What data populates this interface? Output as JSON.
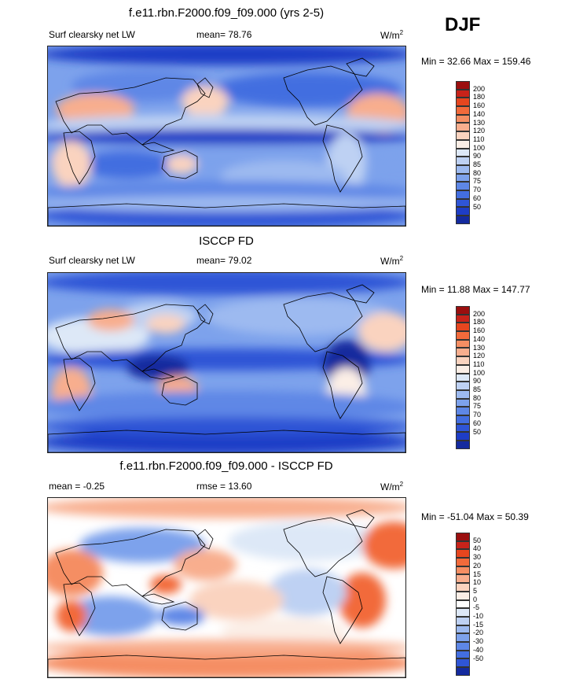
{
  "season": "DJF",
  "colors": {
    "abs_scale": [
      "#9b0f0f",
      "#c8231a",
      "#e6461f",
      "#f26a3b",
      "#f58e63",
      "#f8ae8e",
      "#fad3bf",
      "#fbeee6",
      "#dde8f7",
      "#bed1f3",
      "#9dbaf0",
      "#7da2ec",
      "#5e87e6",
      "#436ee0",
      "#2f55d6",
      "#1e3dc6",
      "#142a9e"
    ],
    "diff_scale": [
      "#9b0f0f",
      "#c8231a",
      "#e6461f",
      "#f26a3b",
      "#f58e63",
      "#f8ae8e",
      "#fad3bf",
      "#fbeee6",
      "#ffffff",
      "#dde8f7",
      "#bed1f3",
      "#9dbaf0",
      "#7da2ec",
      "#5e87e6",
      "#436ee0",
      "#2f55d6",
      "#142a9e"
    ]
  },
  "panels": [
    {
      "title": "f.e11.rbn.F2000.f09_f09.000 (yrs 2-5)",
      "left_label": "Surf clearsky net LW",
      "center_label": "mean=  78.76",
      "units": "W/m",
      "units_sup": "2",
      "minmax": "Min =  32.66 Max = 159.46",
      "ticks": [
        "200",
        "180",
        "160",
        "140",
        "130",
        "120",
        "110",
        "100",
        "90",
        "85",
        "80",
        "75",
        "70",
        "60",
        "50"
      ],
      "map_icon": "world-map-model"
    },
    {
      "title": "ISCCP FD",
      "left_label": "Surf clearsky net LW",
      "center_label": "mean=  79.02",
      "units": "W/m",
      "units_sup": "2",
      "minmax": "Min =  11.88 Max = 147.77",
      "ticks": [
        "200",
        "180",
        "160",
        "140",
        "130",
        "120",
        "110",
        "100",
        "90",
        "85",
        "80",
        "75",
        "70",
        "60",
        "50"
      ],
      "map_icon": "world-map-obs"
    },
    {
      "title": "f.e11.rbn.F2000.f09_f09.000 - ISCCP FD",
      "left_label": "mean =  -0.25",
      "center_label": "rmse =  13.60",
      "units": "W/m",
      "units_sup": "2",
      "minmax": "Min = -51.04 Max =  50.39",
      "ticks": [
        "50",
        "40",
        "30",
        "20",
        "15",
        "10",
        "5",
        "0",
        "-5",
        "-10",
        "-15",
        "-20",
        "-30",
        "-40",
        "-50"
      ],
      "map_icon": "world-map-difference"
    }
  ]
}
